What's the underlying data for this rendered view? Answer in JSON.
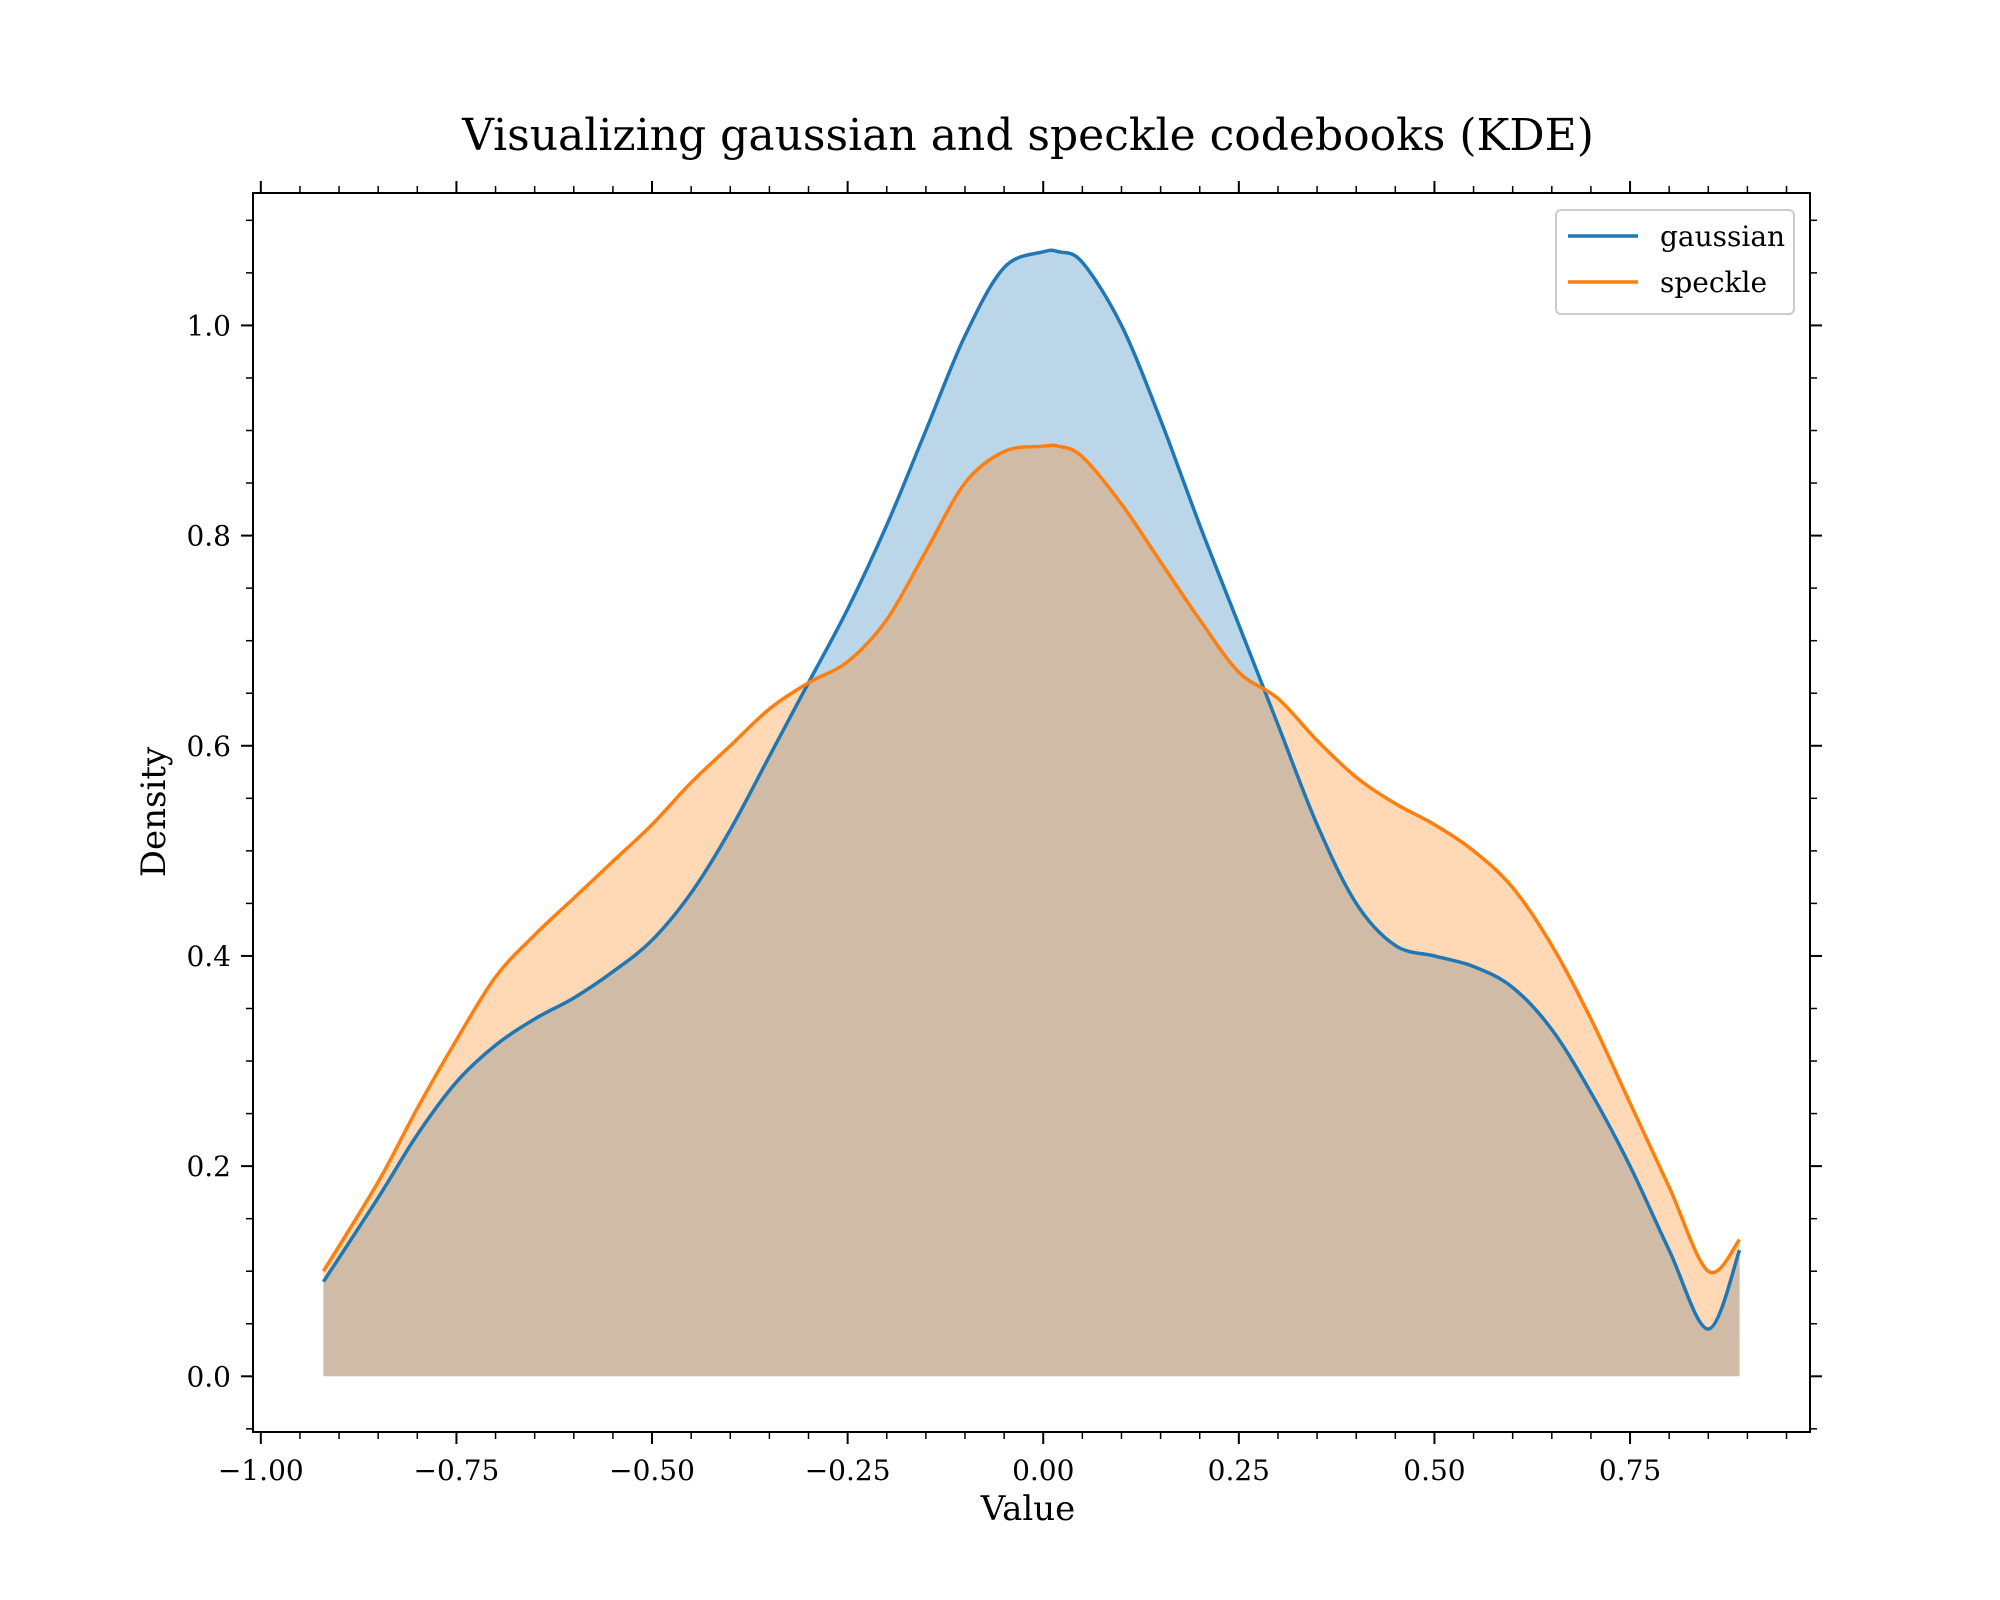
{
  "chart_data": {
    "type": "area",
    "title": "Visualizing gaussian and speckle codebooks (KDE)",
    "xlabel": "Value",
    "ylabel": "Density",
    "xlim": [
      -1.01,
      0.98
    ],
    "ylim": [
      -0.053,
      1.126
    ],
    "x_ticks": [
      -1.0,
      -0.75,
      -0.5,
      -0.25,
      0.0,
      0.25,
      0.5,
      0.75
    ],
    "x_tick_labels": [
      "−1.00",
      "−0.75",
      "−0.50",
      "−0.25",
      "0.00",
      "0.25",
      "0.50",
      "0.75"
    ],
    "x_minor_step": 0.05,
    "y_ticks": [
      0.0,
      0.2,
      0.4,
      0.6,
      0.8,
      1.0
    ],
    "y_tick_labels": [
      "0.0",
      "0.2",
      "0.4",
      "0.6",
      "0.8",
      "1.0"
    ],
    "y_minor_step": 0.05,
    "grid": false,
    "legend_position": "top-right",
    "series": [
      {
        "name": "gaussian",
        "color": "#1f77b4",
        "fill_color": "#1f77b4",
        "fill_opacity": 0.3,
        "x": [
          -0.92,
          -0.85,
          -0.8,
          -0.75,
          -0.7,
          -0.65,
          -0.6,
          -0.55,
          -0.5,
          -0.45,
          -0.4,
          -0.35,
          -0.3,
          -0.25,
          -0.2,
          -0.15,
          -0.1,
          -0.05,
          0.0,
          0.02,
          0.05,
          0.1,
          0.15,
          0.2,
          0.25,
          0.3,
          0.35,
          0.4,
          0.45,
          0.5,
          0.55,
          0.6,
          0.65,
          0.7,
          0.75,
          0.8,
          0.85,
          0.89
        ],
        "y": [
          0.09,
          0.17,
          0.23,
          0.28,
          0.315,
          0.34,
          0.36,
          0.385,
          0.415,
          0.46,
          0.52,
          0.59,
          0.66,
          0.73,
          0.81,
          0.9,
          0.99,
          1.055,
          1.07,
          1.07,
          1.06,
          1.0,
          0.91,
          0.81,
          0.715,
          0.62,
          0.525,
          0.45,
          0.41,
          0.4,
          0.39,
          0.37,
          0.33,
          0.27,
          0.2,
          0.12,
          0.045,
          0.0
        ],
        "y_end_override": [
          0.12
        ]
      },
      {
        "name": "speckle",
        "color": "#ff7f0e",
        "fill_color": "#ff7f0e",
        "fill_opacity": 0.3,
        "x": [
          -0.92,
          -0.85,
          -0.8,
          -0.75,
          -0.7,
          -0.65,
          -0.6,
          -0.55,
          -0.5,
          -0.45,
          -0.4,
          -0.35,
          -0.3,
          -0.25,
          -0.2,
          -0.15,
          -0.1,
          -0.05,
          0.0,
          0.02,
          0.05,
          0.1,
          0.15,
          0.2,
          0.25,
          0.3,
          0.35,
          0.4,
          0.45,
          0.5,
          0.55,
          0.6,
          0.65,
          0.7,
          0.75,
          0.8,
          0.85,
          0.89
        ],
        "y": [
          0.1,
          0.185,
          0.255,
          0.32,
          0.38,
          0.42,
          0.455,
          0.49,
          0.525,
          0.565,
          0.6,
          0.635,
          0.66,
          0.68,
          0.72,
          0.785,
          0.85,
          0.88,
          0.885,
          0.885,
          0.875,
          0.83,
          0.775,
          0.72,
          0.67,
          0.645,
          0.605,
          0.57,
          0.545,
          0.525,
          0.5,
          0.465,
          0.41,
          0.34,
          0.26,
          0.18,
          0.1,
          0.13
        ]
      }
    ]
  }
}
